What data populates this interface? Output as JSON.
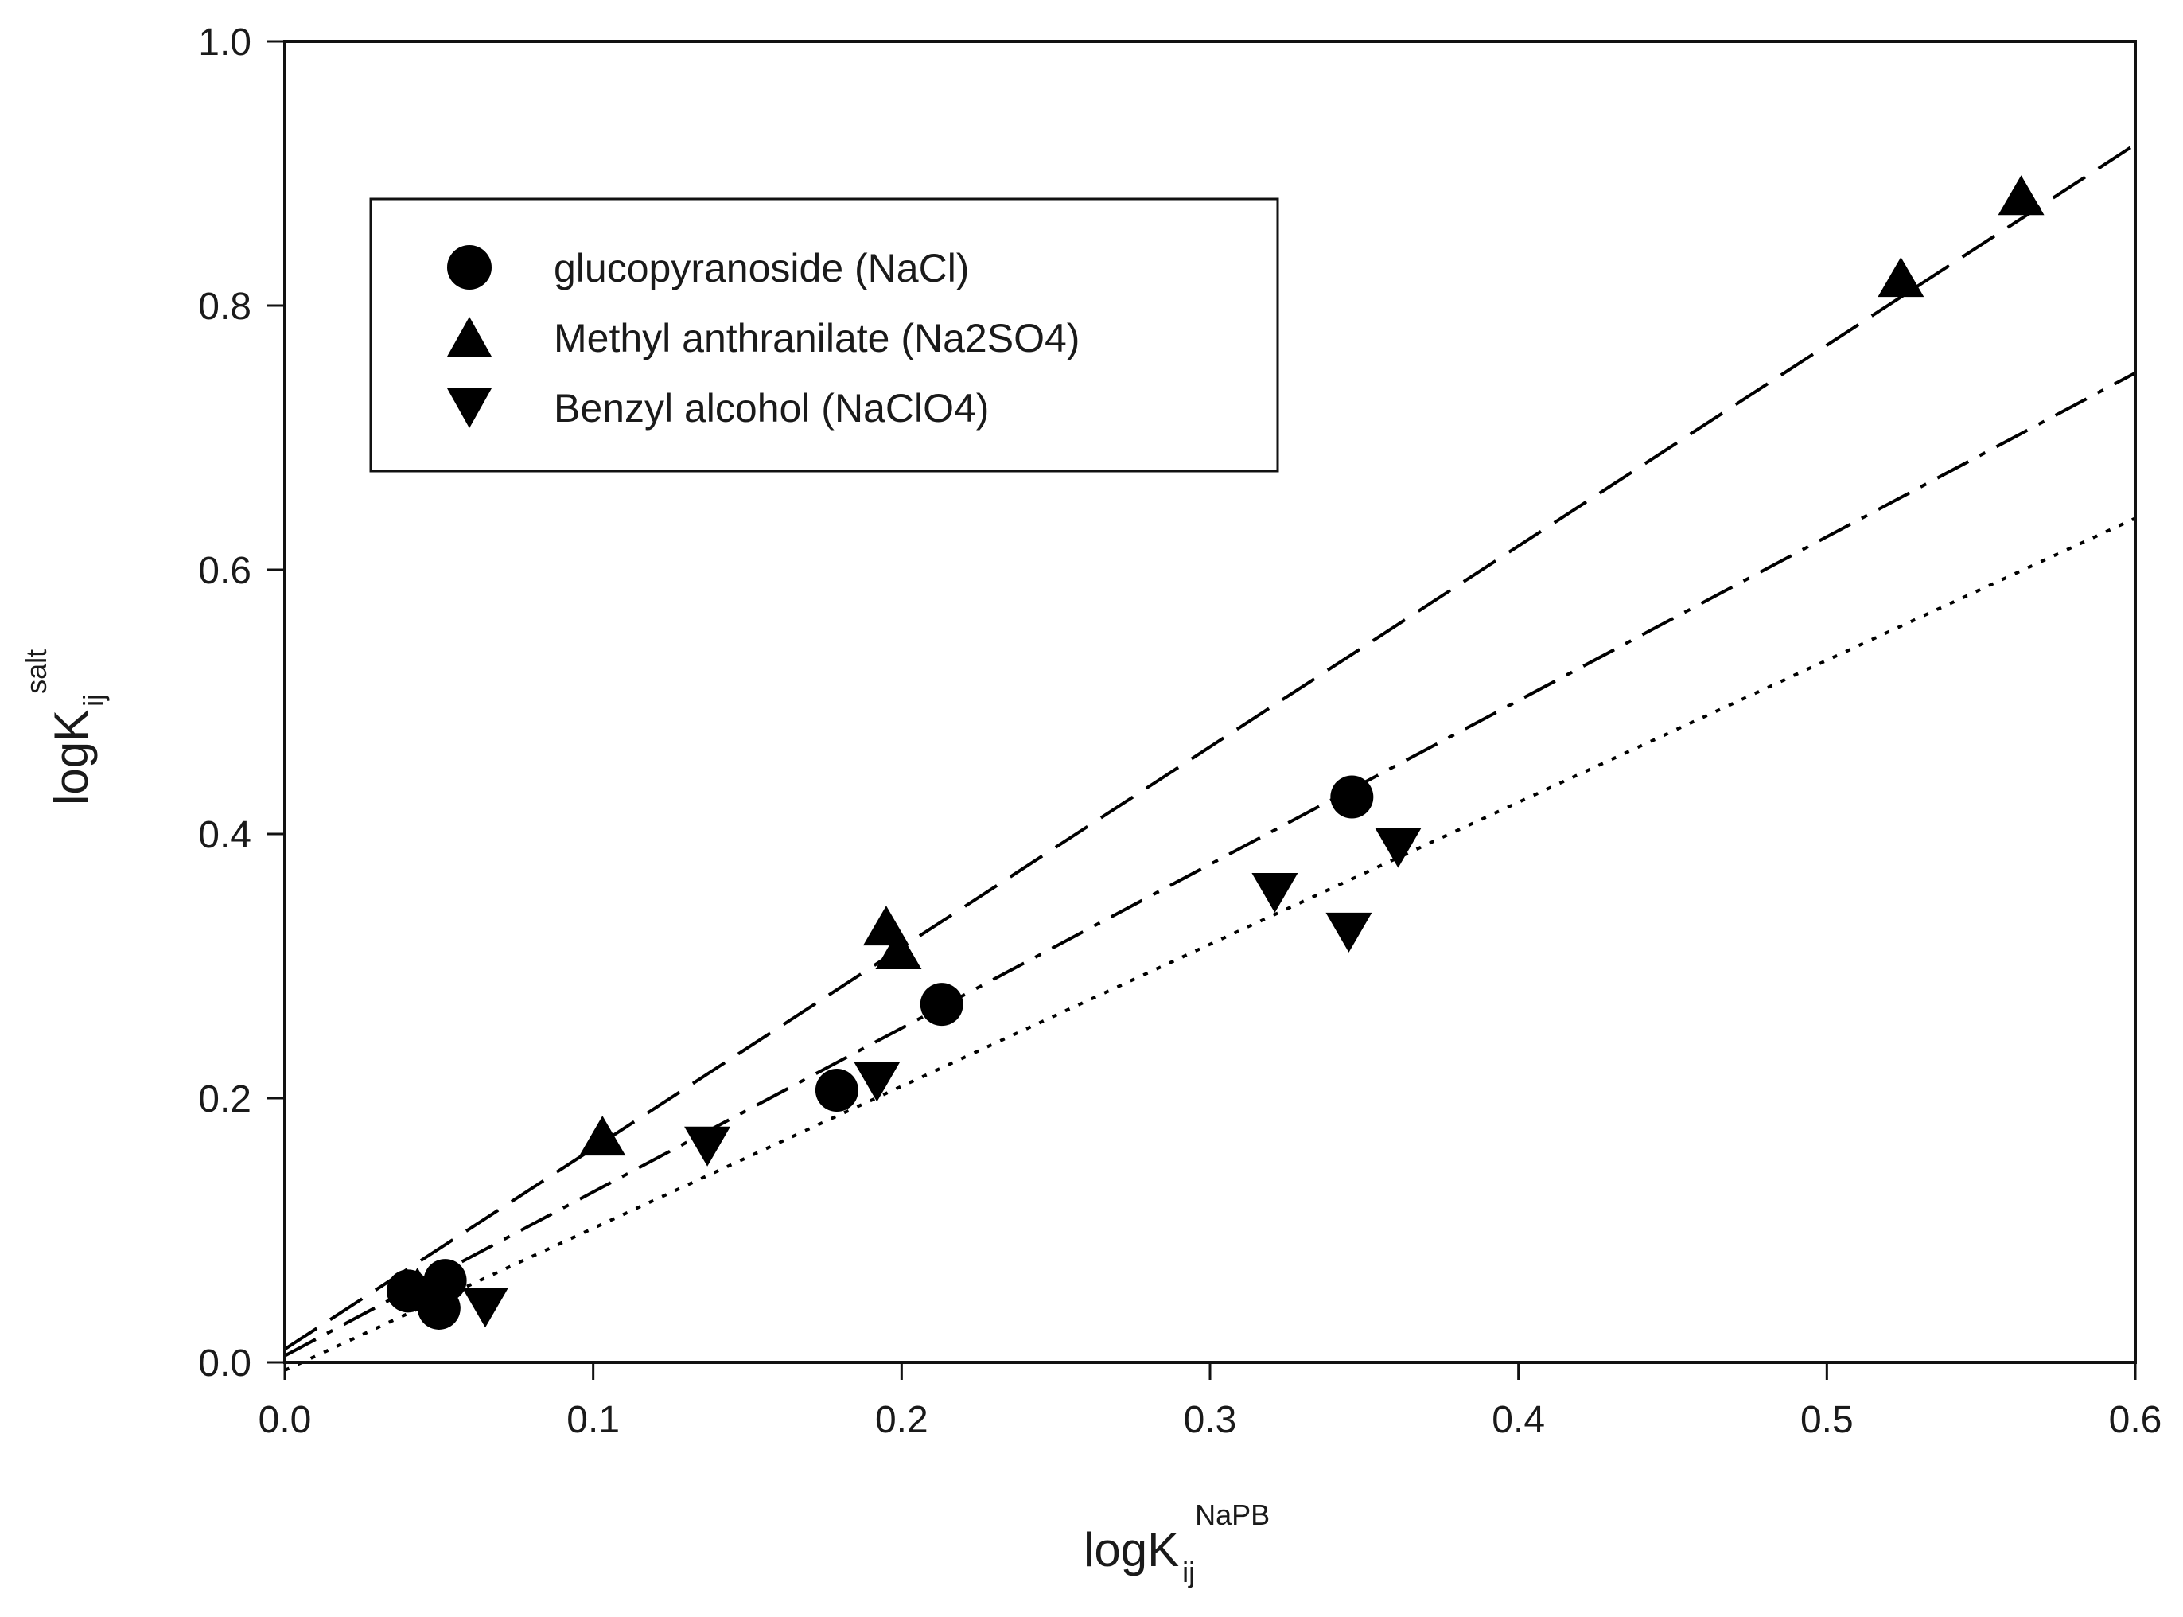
{
  "chart_data": {
    "type": "scatter",
    "title": "",
    "xlabel": {
      "base": "logK",
      "sub": "ij",
      "sup": "NaPB"
    },
    "ylabel": {
      "base": "logK",
      "sub": "ij",
      "sup": "salt"
    },
    "xlim": [
      0.0,
      0.6
    ],
    "ylim": [
      0.0,
      1.0
    ],
    "x_ticks": [
      "0.0",
      "0.1",
      "0.2",
      "0.3",
      "0.4",
      "0.5",
      "0.6"
    ],
    "y_ticks": [
      "0.0",
      "0.2",
      "0.4",
      "0.6",
      "0.8",
      "1.0"
    ],
    "grid": false,
    "legend_position": "upper-left",
    "series": [
      {
        "name": "glucopyranoside (NaCl)",
        "marker": "circle",
        "points": [
          [
            0.04,
            0.054
          ],
          [
            0.052,
            0.062
          ],
          [
            0.05,
            0.041
          ],
          [
            0.179,
            0.206
          ],
          [
            0.213,
            0.271
          ],
          [
            0.346,
            0.428
          ]
        ],
        "fit": {
          "style": "dash-dot",
          "x_range": [
            0.0,
            0.6
          ],
          "intercept": 0.005,
          "slope": 1.24
        }
      },
      {
        "name": "Methyl anthranilate (Na2SO4)",
        "marker": "triangle-up",
        "points": [
          [
            0.043,
            0.053
          ],
          [
            0.103,
            0.168
          ],
          [
            0.195,
            0.327
          ],
          [
            0.199,
            0.309
          ],
          [
            0.524,
            0.818
          ],
          [
            0.563,
            0.88
          ]
        ],
        "fit": {
          "style": "dashed",
          "x_range": [
            0.0,
            0.6
          ],
          "intercept": 0.01,
          "slope": 1.52
        }
      },
      {
        "name": "Benzyl alcohol (NaClO4)",
        "marker": "triangle-down",
        "points": [
          [
            0.065,
            0.045
          ],
          [
            0.137,
            0.167
          ],
          [
            0.192,
            0.216
          ],
          [
            0.321,
            0.359
          ],
          [
            0.345,
            0.329
          ],
          [
            0.361,
            0.393
          ]
        ],
        "fit": {
          "style": "dotted",
          "x_range": [
            0.0,
            0.6
          ],
          "intercept": -0.006,
          "slope": 1.075
        }
      }
    ]
  }
}
